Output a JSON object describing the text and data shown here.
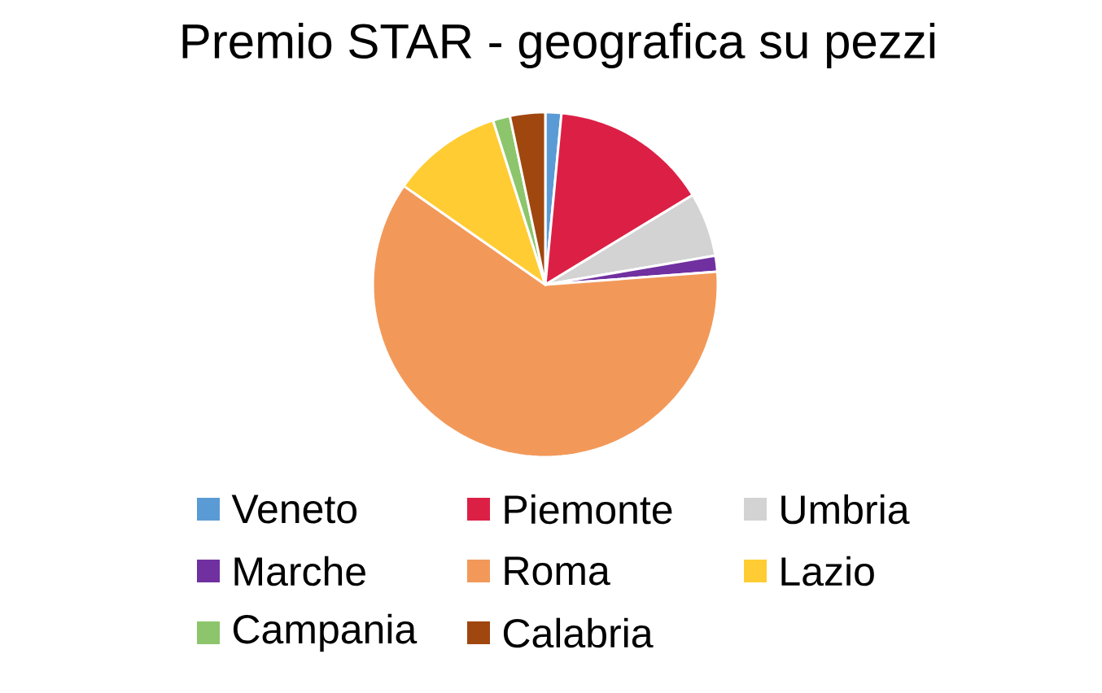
{
  "chart_data": {
    "type": "pie",
    "title": "Premio STAR - geografica su pezzi",
    "categories": [
      "Veneto",
      "Piemonte",
      "Umbria",
      "Marche",
      "Roma",
      "Lazio",
      "Campania",
      "Calabria"
    ],
    "values": [
      1.5,
      14.8,
      6,
      1.5,
      60.9,
      10.4,
      1.6,
      3.3
    ],
    "colors": [
      "#5b9bd5",
      "#dc2045",
      "#d3d3d3",
      "#7030a0",
      "#f2995a",
      "#ffcc33",
      "#8dc56c",
      "#a0460f"
    ],
    "legend": "bottom"
  }
}
